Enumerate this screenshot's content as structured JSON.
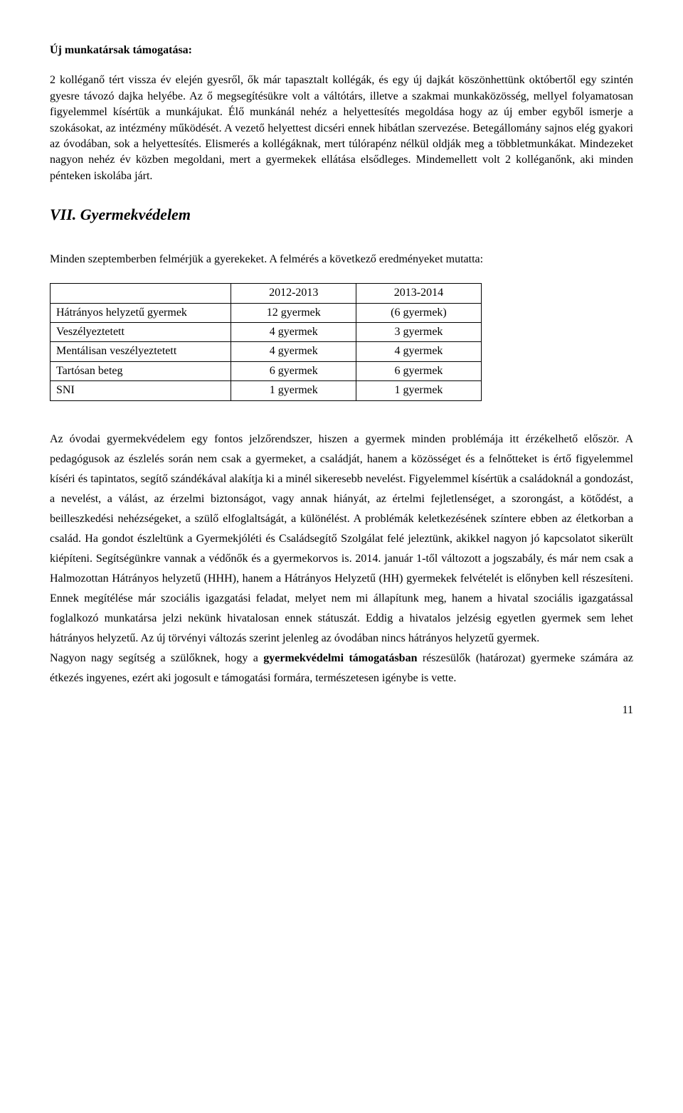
{
  "heading1": "Új munkatársak támogatása:",
  "para1": "2 kolléganő tért vissza év elején gyesről, ők már tapasztalt kollégák, és egy új dajkát köszönhettünk októbertől egy szintén gyesre távozó dajka helyébe. Az ő megsegítésükre volt a váltótárs, illetve a szakmai munkaközösség, mellyel folyamatosan figyelemmel kísértük a munkájukat. Élő munkánál nehéz a helyettesítés megoldása hogy az új ember egyből ismerje a szokásokat, az intézmény működését. A vezető helyettest dicséri ennek hibátlan szervezése. Betegállomány sajnos elég gyakori az óvodában, sok a helyettesítés. Elismerés a kollégáknak, mert túlórapénz nélkül oldják meg a többletmunkákat. Mindezeket nagyon nehéz év közben megoldani, mert a gyermekek ellátása elsődleges. Mindemellett volt 2 kolléganőnk, aki minden pénteken iskolába járt.",
  "section_title": "VII. Gyermekvédelem",
  "intro": "Minden szeptemberben felmérjük a gyerekeket. A felmérés a következő eredményeket mutatta:",
  "table": {
    "header": [
      "",
      "2012-2013",
      "2013-2014"
    ],
    "rows": [
      [
        "Hátrányos helyzetű gyermek",
        "12 gyermek",
        "(6 gyermek)"
      ],
      [
        "Veszélyeztetett",
        "4 gyermek",
        "3 gyermek"
      ],
      [
        "Mentálisan veszélyeztetett",
        "4 gyermek",
        "4 gyermek"
      ],
      [
        "Tartósan beteg",
        "6  gyermek",
        "6 gyermek"
      ],
      [
        "SNI",
        "1 gyermek",
        "1 gyermek"
      ]
    ]
  },
  "para2a": "Az óvodai gyermekvédelem egy fontos jelzőrendszer, hiszen a gyermek minden problémája itt érzékelhető először. A pedagógusok az észlelés során nem csak a gyermeket, a családját, hanem a közösséget és a felnőtteket is értő figyelemmel kíséri és tapintatos, segítő szándékával alakítja ki a minél sikeresebb nevelést. Figyelemmel kísértük a családoknál a gondozást, a nevelést, a válást, az érzelmi biztonságot, vagy annak hiányát, az értelmi fejletlenséget, a szorongást, a kötődést, a beilleszkedési nehézségeket, a szülő elfoglaltságát, a különélést. A problémák keletkezésének színtere ebben az életkorban a család. Ha gondot észleltünk a Gyermekjóléti és Családsegítő Szolgálat felé jeleztünk, akikkel nagyon jó kapcsolatot sikerült kiépíteni. Segítségünkre vannak a védőnők és a gyermekorvos is.  2014. január 1-től változott a jogszabály, és már nem csak a Halmozottan Hátrányos helyzetű (HHH), hanem a Hátrányos Helyzetű (HH) gyermekek felvételét is előnyben kell részesíteni. Ennek megítélése már szociális igazgatási feladat, melyet nem mi állapítunk meg, hanem a hivatal szociális igazgatással foglalkozó munkatársa jelzi nekünk hivatalosan ennek státuszát. Eddig a hivatalos jelzésig egyetlen gyermek sem lehet hátrányos helyzetű. Az új törvényi változás szerint jelenleg az óvodában nincs hátrányos helyzetű gyermek.",
  "para2b_pre": "Nagyon nagy segítség a szülőknek, hogy a ",
  "para2b_bold": "gyermekvédelmi támogatásban",
  "para2b_post": " részesülők (határozat) gyermeke számára az étkezés ingyenes, ezért aki jogosult e támogatási formára, természetesen igénybe is vette.",
  "page_number": "11"
}
